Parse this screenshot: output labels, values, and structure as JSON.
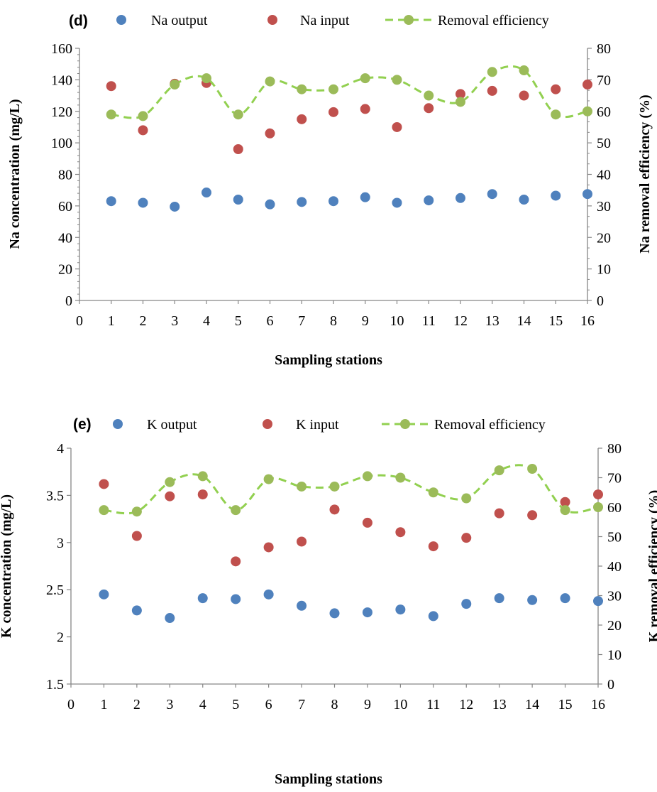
{
  "chart_data": [
    {
      "type": "scatter",
      "panel_label": "(d)",
      "xlabel": "Sampling stations",
      "ylabel_left": "Na concentration (mg/L)",
      "ylabel_right": "Na removal efficiency (%)",
      "xlim": [
        0,
        16
      ],
      "ylim_left": [
        0,
        160
      ],
      "ylim_right": [
        0,
        80
      ],
      "x_ticks": [
        0,
        1,
        2,
        3,
        4,
        5,
        6,
        7,
        8,
        9,
        10,
        11,
        12,
        13,
        14,
        15,
        16
      ],
      "y_ticks_left": [
        0,
        20,
        40,
        60,
        80,
        100,
        120,
        140,
        160
      ],
      "y_ticks_right": [
        0,
        10,
        20,
        30,
        40,
        50,
        60,
        70,
        80
      ],
      "grid": false,
      "legend_position": "top",
      "x": [
        1,
        2,
        3,
        4,
        5,
        6,
        7,
        8,
        9,
        10,
        11,
        12,
        13,
        14,
        15,
        16
      ],
      "series": [
        {
          "name": "Na output",
          "axis": "left",
          "style": "markers",
          "color": "#4f81bd",
          "values": [
            63,
            62,
            59.5,
            68.5,
            64,
            61,
            62.5,
            63,
            65.5,
            62,
            63.5,
            65,
            67.5,
            64,
            66.5,
            67.5
          ]
        },
        {
          "name": "Na input",
          "axis": "left",
          "style": "markers",
          "color": "#c0504d",
          "values": [
            136,
            108,
            137.5,
            138,
            96,
            106,
            115,
            119.5,
            121.5,
            110,
            122,
            131,
            133,
            130,
            134,
            137
          ]
        },
        {
          "name": "Removal efficiency",
          "axis": "right",
          "style": "dashed-smooth-line-markers",
          "color": "#9bbb59",
          "line_color": "#92d050",
          "values": [
            59,
            58.5,
            68.5,
            70.5,
            59,
            69.5,
            67,
            67,
            70.5,
            70,
            65,
            63,
            72.5,
            73,
            59,
            60
          ]
        }
      ]
    },
    {
      "type": "scatter",
      "panel_label": "(e)",
      "xlabel": "Sampling stations",
      "ylabel_left": "K concentration (mg/L)",
      "ylabel_right": "K removal efficiency (%)",
      "xlim": [
        0,
        16
      ],
      "ylim_left": [
        1.5,
        4
      ],
      "ylim_right": [
        0,
        80
      ],
      "x_ticks": [
        0,
        1,
        2,
        3,
        4,
        5,
        6,
        7,
        8,
        9,
        10,
        11,
        12,
        13,
        14,
        15,
        16
      ],
      "y_ticks_left": [
        1.5,
        2,
        2.5,
        3,
        3.5,
        4
      ],
      "y_ticks_right": [
        0,
        10,
        20,
        30,
        40,
        50,
        60,
        70,
        80
      ],
      "grid": false,
      "legend_position": "top",
      "x": [
        1,
        2,
        3,
        4,
        5,
        6,
        7,
        8,
        9,
        10,
        11,
        12,
        13,
        14,
        15,
        16
      ],
      "series": [
        {
          "name": "K output",
          "axis": "left",
          "style": "markers",
          "color": "#4f81bd",
          "values": [
            2.45,
            2.28,
            2.2,
            2.41,
            2.4,
            2.45,
            2.33,
            2.25,
            2.26,
            2.29,
            2.22,
            2.35,
            2.41,
            2.39,
            2.41,
            2.38
          ]
        },
        {
          "name": "K input",
          "axis": "left",
          "style": "markers",
          "color": "#c0504d",
          "values": [
            3.62,
            3.07,
            3.49,
            3.51,
            2.8,
            2.95,
            3.01,
            3.35,
            3.21,
            3.11,
            2.96,
            3.05,
            3.31,
            3.29,
            3.43,
            3.51
          ]
        },
        {
          "name": "Removal efficiency",
          "axis": "right",
          "style": "dashed-smooth-line-markers",
          "color": "#9bbb59",
          "line_color": "#92d050",
          "values": [
            59,
            58.5,
            68.5,
            70.5,
            59,
            69.5,
            67,
            67,
            70.5,
            70,
            65,
            63,
            72.5,
            73,
            59,
            60
          ]
        }
      ]
    }
  ]
}
